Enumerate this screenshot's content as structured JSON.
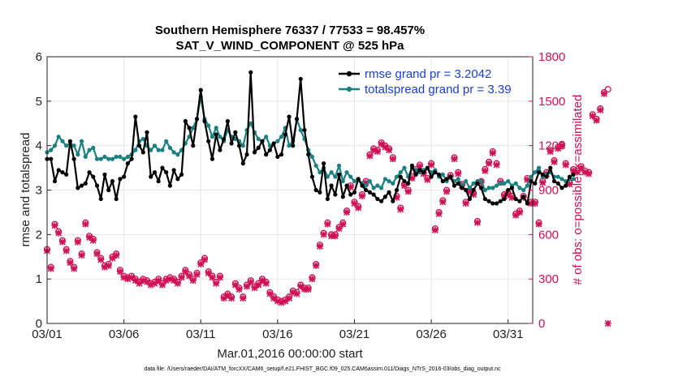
{
  "chart_data": {
    "type": "line",
    "title": "Southern Hemisphere 76337 / 77533 = 98.457%",
    "subtitle": "SAT_V_WIND_COMPONENT @ 525 hPa",
    "xlabel": "Mar.01,2016 00:00:00 start",
    "ylabel": "rmse and totalspread",
    "ylabel_right": "# of obs: o=possible; ×=assimilated",
    "xlim": [
      0,
      31.6
    ],
    "ylim": [
      0,
      6
    ],
    "ylim_right": [
      0,
      1800
    ],
    "x_tick_values": [
      0,
      5,
      10,
      15,
      20,
      25,
      30
    ],
    "x_tick_labels": [
      "03/01",
      "03/06",
      "03/11",
      "03/16",
      "03/21",
      "03/26",
      "03/31"
    ],
    "y_ticks": [
      "0",
      "1",
      "2",
      "3",
      "4",
      "5",
      "6"
    ],
    "y_tick_values": [
      0,
      1,
      2,
      3,
      4,
      5,
      6
    ],
    "y_right_ticks": [
      "0",
      "300",
      "600",
      "900",
      "1200",
      "1500",
      "1800"
    ],
    "y_right_tick_values": [
      0,
      300,
      600,
      900,
      1200,
      1500,
      1800
    ],
    "legend": [
      {
        "label": "rmse grand pr = 3.2042",
        "color": "#000000"
      },
      {
        "label": "totalspread grand pr = 3.39",
        "color": "#1a8080"
      }
    ],
    "footnote": "data file: /Users/raeder/DAI/ATM_forcXX/CAM6_setup/f.e21.FHIST_BGC.f09_025.CAM6assim.011/Diags_NTrS_2016-03/obs_diag_output.nc",
    "colors": {
      "rmse": "#000000",
      "spread": "#1a8080",
      "obs": "#d01055"
    },
    "series": [
      {
        "name": "rmse",
        "x_start": 0,
        "x_step": 0.25,
        "values": [
          3.7,
          3.7,
          3.2,
          3.45,
          3.4,
          3.35,
          4.1,
          3.7,
          3.05,
          3.1,
          3.15,
          3.4,
          3.3,
          3.1,
          2.8,
          3.35,
          3.0,
          3.2,
          2.8,
          3.25,
          3.3,
          3.6,
          3.7,
          4.65,
          4.0,
          3.85,
          4.3,
          3.3,
          3.4,
          3.2,
          3.5,
          3.4,
          3.1,
          3.45,
          3.25,
          3.35,
          4.55,
          4.4,
          4.0,
          4.6,
          5.25,
          4.55,
          4.1,
          3.7,
          4.25,
          3.9,
          4.15,
          4.55,
          4.05,
          4.3,
          4.0,
          3.6,
          3.8,
          5.65,
          3.85,
          3.95,
          4.1,
          3.8,
          3.9,
          4.05,
          3.75,
          3.8,
          4.25,
          4.65,
          4.0,
          4.6,
          5.5,
          4.35,
          3.8,
          3.3,
          3.0,
          2.95,
          3.6,
          2.8,
          3.1,
          2.9,
          3.35,
          2.85,
          3.1,
          2.9,
          2.95,
          3.25,
          3.1,
          3.0,
          2.95,
          2.9,
          2.8,
          2.75,
          2.85,
          2.95,
          2.75,
          3.0,
          3.3,
          3.2,
          3.15,
          3.55,
          3.35,
          3.45,
          3.4,
          3.5,
          3.3,
          3.4,
          3.35,
          3.2,
          3.25,
          3.3,
          3.1,
          3.15,
          3.05,
          3.0,
          2.8,
          3.0,
          3.15,
          3.05,
          2.8,
          2.75,
          2.7,
          2.7,
          2.75,
          2.8,
          3.0,
          3.05,
          2.8,
          2.75,
          2.85,
          2.7,
          3.2,
          3.15,
          3.4,
          3.35,
          3.3,
          3.5,
          3.2,
          3.15,
          3.05,
          3.1,
          3.3,
          3.35
        ]
      },
      {
        "name": "totalspread",
        "x_start": 0,
        "x_step": 0.25,
        "values": [
          3.85,
          3.9,
          4.0,
          4.2,
          4.1,
          4.0,
          4.05,
          4.0,
          3.8,
          4.1,
          3.75,
          3.9,
          3.95,
          3.7,
          3.7,
          3.75,
          3.7,
          3.7,
          3.75,
          3.75,
          3.7,
          3.75,
          3.8,
          3.9,
          4.1,
          4.15,
          4.0,
          3.9,
          4.0,
          3.9,
          3.9,
          4.1,
          3.95,
          3.85,
          3.8,
          3.9,
          4.05,
          4.2,
          4.4,
          4.6,
          5.1,
          4.6,
          4.45,
          4.2,
          4.4,
          4.2,
          4.1,
          4.35,
          4.2,
          4.15,
          4.1,
          4.0,
          4.35,
          4.5,
          4.3,
          4.15,
          4.1,
          4.2,
          4.0,
          4.05,
          4.1,
          4.2,
          4.4,
          4.0,
          4.1,
          4.6,
          4.35,
          4.15,
          3.9,
          3.75,
          3.55,
          3.4,
          3.5,
          3.3,
          3.4,
          3.3,
          3.55,
          3.2,
          3.4,
          3.3,
          3.2,
          3.25,
          3.15,
          3.1,
          3.2,
          3.05,
          3.1,
          3.05,
          3.25,
          3.2,
          3.15,
          3.3,
          3.4,
          3.5,
          3.3,
          3.5,
          3.45,
          3.4,
          3.45,
          3.5,
          3.4,
          3.45,
          3.3,
          3.35,
          3.2,
          3.3,
          3.2,
          3.25,
          3.1,
          3.2,
          3.05,
          3.15,
          3.2,
          3.2,
          3.0,
          3.05,
          3.05,
          3.1,
          3.15,
          3.15,
          3.2,
          3.1,
          3.15,
          3.05,
          3.0,
          3.1,
          3.3,
          3.4,
          3.5,
          3.3,
          3.35,
          3.4,
          3.3,
          3.3,
          3.25,
          3.2,
          3.25,
          3.25
        ]
      },
      {
        "name": "obs_possible",
        "x_start": 0,
        "x_step": 0.25,
        "values": [
          500,
          380,
          670,
          620,
          560,
          500,
          420,
          380,
          560,
          470,
          680,
          590,
          570,
          480,
          440,
          390,
          400,
          450,
          470,
          360,
          320,
          310,
          320,
          300,
          280,
          300,
          290,
          270,
          280,
          300,
          270,
          300,
          310,
          300,
          280,
          320,
          360,
          330,
          300,
          340,
          410,
          440,
          350,
          320,
          280,
          320,
          180,
          200,
          180,
          270,
          240,
          180,
          260,
          290,
          250,
          270,
          300,
          280,
          210,
          180,
          160,
          150,
          160,
          180,
          220,
          210,
          260,
          240,
          240,
          310,
          400,
          530,
          610,
          680,
          600,
          600,
          650,
          680,
          760,
          930,
          820,
          790,
          870,
          960,
          1140,
          1180,
          1170,
          1220,
          1200,
          1180,
          1120,
          860,
          780,
          940,
          900,
          990,
          1040,
          1070,
          1020,
          980,
          1080,
          640,
          750,
          830,
          900,
          1000,
          1120,
          1020,
          940,
          820,
          900,
          880,
          690,
          960,
          1040,
          1090,
          1160,
          1080,
          960,
          870,
          880,
          860,
          740,
          760,
          860,
          980,
          820,
          820,
          680,
          960,
          1020,
          1170,
          1100,
          1190,
          1210,
          1080,
          950,
          1040,
          1030,
          1060,
          1030,
          1020,
          1410,
          1380,
          1450,
          1560,
          1580
        ]
      },
      {
        "name": "obs_assimilated",
        "x_start": 0,
        "x_step": 0.25,
        "values": [
          490,
          370,
          660,
          610,
          550,
          490,
          410,
          370,
          550,
          460,
          670,
          580,
          560,
          470,
          430,
          380,
          390,
          440,
          460,
          350,
          310,
          300,
          310,
          290,
          270,
          290,
          280,
          260,
          270,
          290,
          260,
          290,
          300,
          290,
          270,
          310,
          350,
          320,
          290,
          330,
          400,
          430,
          340,
          310,
          270,
          310,
          170,
          190,
          170,
          260,
          230,
          170,
          250,
          280,
          240,
          260,
          290,
          270,
          200,
          170,
          150,
          140,
          150,
          170,
          210,
          200,
          250,
          230,
          230,
          300,
          390,
          520,
          600,
          670,
          590,
          590,
          640,
          670,
          750,
          920,
          810,
          780,
          860,
          950,
          1130,
          1170,
          1160,
          1210,
          1190,
          1170,
          1110,
          850,
          770,
          930,
          890,
          980,
          1030,
          1060,
          1010,
          970,
          1070,
          630,
          740,
          820,
          890,
          990,
          1110,
          1010,
          930,
          810,
          890,
          870,
          680,
          950,
          1030,
          1080,
          1150,
          1070,
          950,
          860,
          870,
          850,
          730,
          750,
          850,
          970,
          810,
          810,
          670,
          950,
          1010,
          1160,
          1090,
          1180,
          1200,
          1070,
          940,
          1030,
          1020,
          1050,
          1020,
          1010,
          1400,
          1370,
          1440,
          1550,
          0
        ]
      }
    ]
  }
}
